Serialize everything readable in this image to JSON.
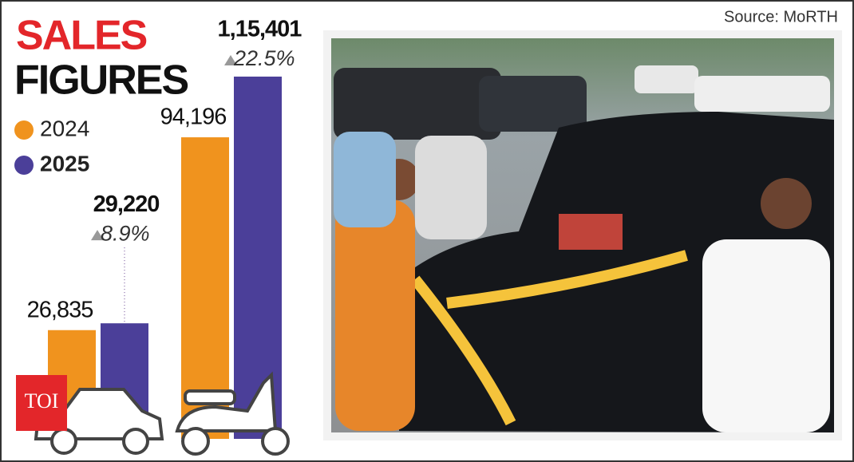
{
  "chart_data": {
    "type": "bar",
    "title": [
      "SALES",
      "FIGURES"
    ],
    "source": "Source: MoRTH",
    "logo": "TOI",
    "categories": [
      null,
      null
    ],
    "series": [
      {
        "name": "2024",
        "color": "#f0931e",
        "values": [
          26835,
          94196
        ],
        "value_labels": [
          "26,835",
          "94,196"
        ]
      },
      {
        "name": "2025",
        "color": "#4b3f99",
        "values": [
          29220,
          115401
        ],
        "value_labels": [
          "29,220",
          "1,15,401"
        ]
      }
    ],
    "growth_labels": [
      "8.9%",
      "22.5%"
    ]
  }
}
